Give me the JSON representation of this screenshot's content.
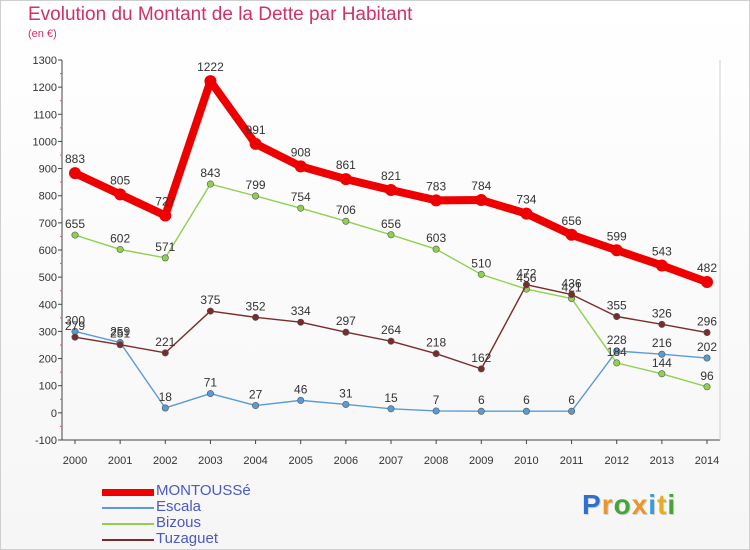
{
  "title": "Evolution du Montant de la Dette par Habitant",
  "subtitle": "(en €)",
  "logo": {
    "text": "Proxiti",
    "colors": [
      "#2f6fd1",
      "#e9962c",
      "#47a33a",
      "#e9962c",
      "#3b9be0",
      "#e0b21f",
      "#47a33a"
    ]
  },
  "chart_data": {
    "type": "line",
    "x": [
      "2000",
      "2001",
      "2002",
      "2003",
      "2004",
      "2005",
      "2006",
      "2007",
      "2008",
      "2009",
      "2010",
      "2011",
      "2012",
      "2013",
      "2014"
    ],
    "ylim": [
      -100,
      1300
    ],
    "yticks": [
      "-100",
      "0",
      "100",
      "200",
      "300",
      "400",
      "500",
      "600",
      "700",
      "800",
      "900",
      "1000",
      "1100",
      "1200",
      "1300"
    ],
    "grid": false,
    "legend_position": "bottom-left",
    "series": [
      {
        "name": "MONTOUSSé",
        "color": "#ee0000",
        "values": [
          883,
          805,
          727,
          1222,
          991,
          908,
          861,
          821,
          783,
          784,
          734,
          656,
          599,
          543,
          482
        ],
        "labels": [
          "883",
          "805",
          "727",
          "1222",
          "991",
          "908",
          "861",
          "821",
          "783",
          "784",
          "734",
          "656",
          "599",
          "543",
          "482"
        ]
      },
      {
        "name": "Escala",
        "color": "#5b9bd5",
        "values": [
          300,
          259,
          18,
          71,
          27,
          46,
          31,
          15,
          7,
          6,
          6,
          6,
          228,
          216,
          202
        ],
        "labels": [
          "300",
          "259",
          "18",
          "71",
          "27",
          "46",
          "31",
          "15",
          "7",
          "6",
          "6",
          "6",
          "228",
          "216",
          "202"
        ]
      },
      {
        "name": "Bizous",
        "color": "#8fd14f",
        "values": [
          655,
          602,
          571,
          843,
          799,
          754,
          706,
          656,
          603,
          510,
          456,
          421,
          184,
          144,
          96
        ],
        "labels": [
          "655",
          "602",
          "571",
          "843",
          "799",
          "754",
          "706",
          "656",
          "603",
          "510",
          "456",
          "421",
          "184",
          "144",
          "96"
        ]
      },
      {
        "name": "Tuzaguet",
        "color": "#7b2b2b",
        "values": [
          279,
          251,
          221,
          375,
          352,
          334,
          297,
          264,
          218,
          162,
          472,
          436,
          355,
          326,
          296
        ],
        "labels": [
          "279",
          "251",
          "221",
          "375",
          "352",
          "334",
          "297",
          "264",
          "218",
          "162",
          "472",
          "436",
          "355",
          "326",
          "296"
        ]
      }
    ]
  }
}
